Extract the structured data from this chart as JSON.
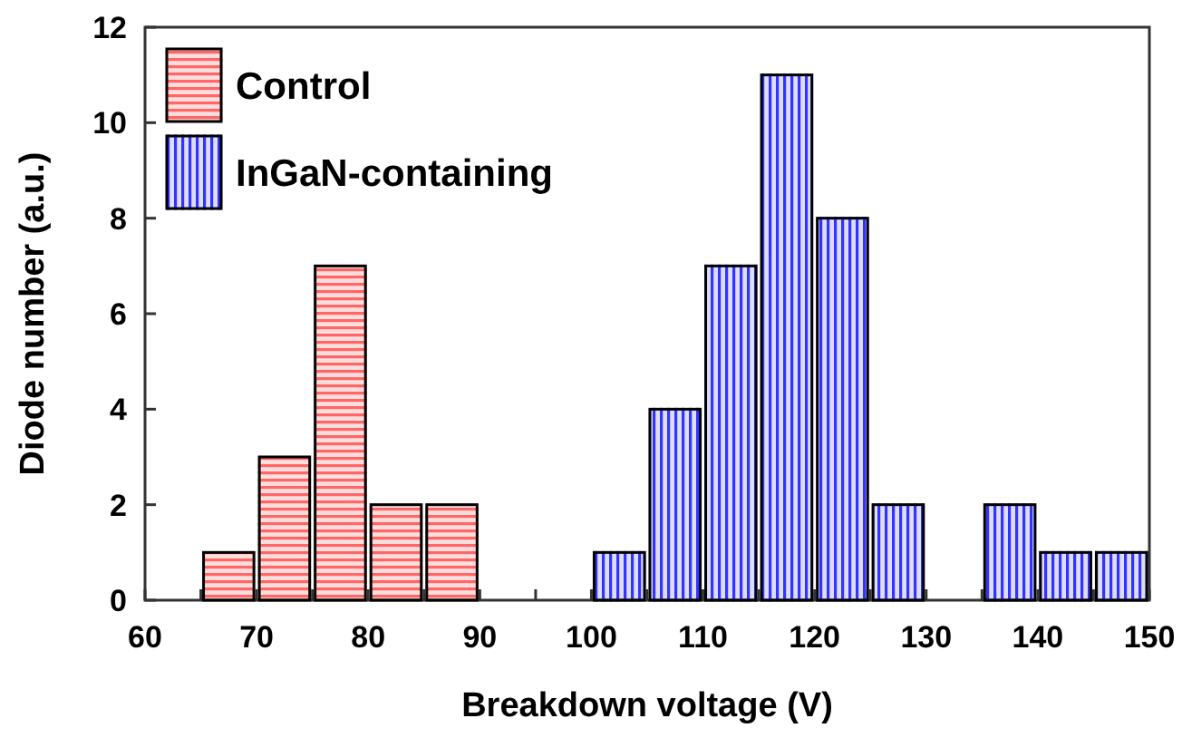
{
  "chart_data": {
    "type": "histogram",
    "xlabel": "Breakdown voltage (V)",
    "ylabel": "Diode number (a.u.)",
    "bins": [
      60,
      65,
      70,
      75,
      80,
      85,
      90,
      95,
      100,
      105,
      110,
      115,
      120,
      125,
      130,
      135,
      140,
      145,
      150
    ],
    "series": [
      {
        "name": "Control",
        "color": "#ff0000",
        "values": [
          null,
          1,
          3,
          7,
          2,
          2,
          null,
          null,
          null,
          null,
          null,
          null,
          null,
          null,
          null,
          null,
          null,
          null
        ]
      },
      {
        "name": "InGaN-containing",
        "color": "#0000ff",
        "values": [
          null,
          null,
          null,
          null,
          null,
          null,
          null,
          null,
          1,
          4,
          7,
          11,
          8,
          2,
          null,
          2,
          1,
          1
        ]
      }
    ],
    "xlim": [
      60,
      150
    ],
    "xticks": [
      60,
      {
        "value": 65,
        "label": null
      },
      70,
      {
        "value": 75,
        "label": null
      },
      80,
      {
        "value": 85,
        "label": null
      },
      90,
      {
        "value": 95,
        "label": null
      },
      100,
      {
        "value": 105,
        "label": null
      },
      110,
      {
        "value": 115,
        "label": null
      },
      120,
      {
        "value": 125,
        "label": null
      },
      130,
      {
        "value": 135,
        "label": null
      },
      140,
      {
        "value": 145,
        "label": null
      },
      150
    ],
    "ylim": [
      0,
      12
    ],
    "yticks": [
      0,
      2,
      4,
      6,
      8,
      10,
      12
    ],
    "grid": false,
    "legend": "top left"
  }
}
